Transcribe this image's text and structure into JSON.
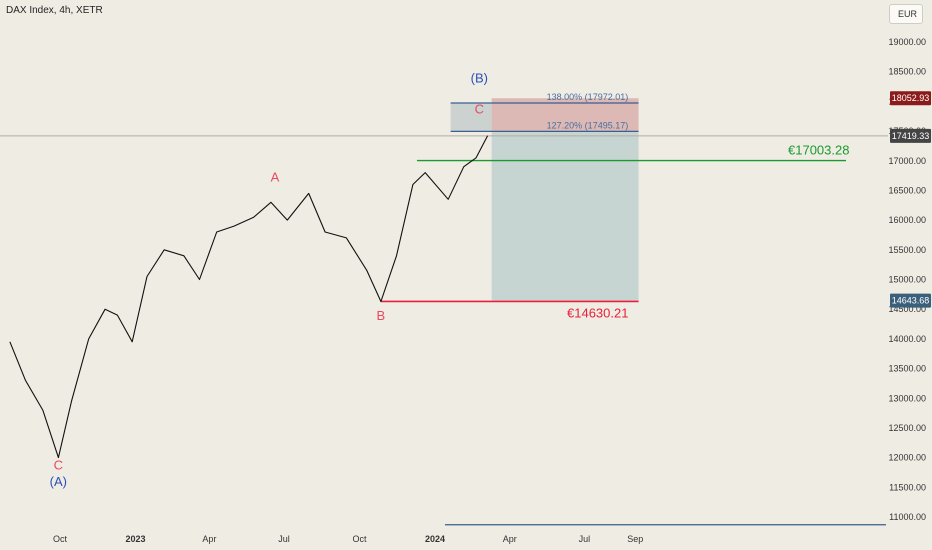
{
  "header": {
    "symbol": "DAX Index, 4h, XETR",
    "currency": "EUR"
  },
  "colors": {
    "up_level": "#1a9a2e",
    "down_level": "#e8203a",
    "wave_red": "#e84a5f",
    "wave_blue": "#2a50b8",
    "fib_line": "#3a5f90",
    "target_zone": "#d6a8a4",
    "stop_zone": "#b8cccc",
    "price_badge": "#444444",
    "target_badge": "#8b1a1a",
    "low_badge": "#3a5f7a"
  },
  "chart_data": {
    "type": "line",
    "title": "DAX Index, 4h, XETR",
    "xlabel": "",
    "ylabel": "",
    "ylim": [
      10850,
      19400
    ],
    "x_ticks": [
      "Oct",
      "2023",
      "Apr",
      "Jul",
      "Oct",
      "2024",
      "Apr",
      "Jul",
      "Sep"
    ],
    "y_ticks": [
      "19000.00",
      "18500.00",
      "18000.00",
      "17500.00",
      "17000.00",
      "16500.00",
      "16000.00",
      "15500.00",
      "15000.00",
      "14500.00",
      "14000.00",
      "13500.00",
      "13000.00",
      "12500.00",
      "12000.00",
      "11500.00",
      "11000.00"
    ],
    "series": [
      {
        "x": [
          "2022-08-01",
          "2022-08-20",
          "2022-09-10",
          "2022-09-29",
          "2022-10-15",
          "2022-11-05",
          "2022-11-25",
          "2022-12-10",
          "2022-12-28",
          "2023-01-15",
          "2023-02-05",
          "2023-03-01",
          "2023-03-20",
          "2023-04-10",
          "2023-05-01",
          "2023-05-25",
          "2023-06-15",
          "2023-07-05",
          "2023-07-31",
          "2023-08-20",
          "2023-09-15",
          "2023-10-10",
          "2023-10-27",
          "2023-11-15",
          "2023-12-05",
          "2023-12-20",
          "2024-01-17",
          "2024-02-05",
          "2024-02-20",
          "2024-03-05"
        ],
        "values": [
          13950,
          13300,
          12800,
          12000,
          12950,
          14000,
          14500,
          14400,
          13950,
          15050,
          15500,
          15400,
          15000,
          15800,
          15900,
          16050,
          16300,
          16000,
          16450,
          15800,
          15700,
          15150,
          14630,
          15400,
          16600,
          16800,
          16350,
          16900,
          17050,
          17420
        ]
      }
    ],
    "annotations": {
      "waves": [
        {
          "label": "C",
          "x": "2022-09-29",
          "price": 11800
        },
        {
          "label": "(A)",
          "x": "2022-09-29",
          "price": 11520
        },
        {
          "label": "A",
          "x": "2023-06-20",
          "price": 16650
        },
        {
          "label": "B",
          "x": "2023-10-27",
          "price": 14320
        },
        {
          "label": "C",
          "x": "2024-02-24",
          "price": 17800
        },
        {
          "label": "(B)",
          "x": "2024-02-24",
          "price": 18320
        }
      ],
      "fib_levels": [
        {
          "label": "138.00% (17972.01)",
          "price": 17972.01
        },
        {
          "label": "127.20% (17495.17)",
          "price": 17495.17
        }
      ],
      "levels": [
        {
          "label": "€17003.28",
          "price": 17003.28,
          "from": "2023-12-10"
        },
        {
          "label": "€14630.21",
          "price": 14630.21,
          "from": "2023-10-27"
        }
      ],
      "position": {
        "from": "2024-03-10",
        "to": "2024-09-05",
        "entry": 17495.17,
        "target": 18052.93,
        "stop": 14643.68
      },
      "badges": [
        {
          "label": "18052.93",
          "price": 18052.93
        },
        {
          "label": "17419.33",
          "price": 17419.33
        },
        {
          "label": "14643.68",
          "price": 14643.68
        }
      ],
      "baseline_price": 10870
    }
  }
}
